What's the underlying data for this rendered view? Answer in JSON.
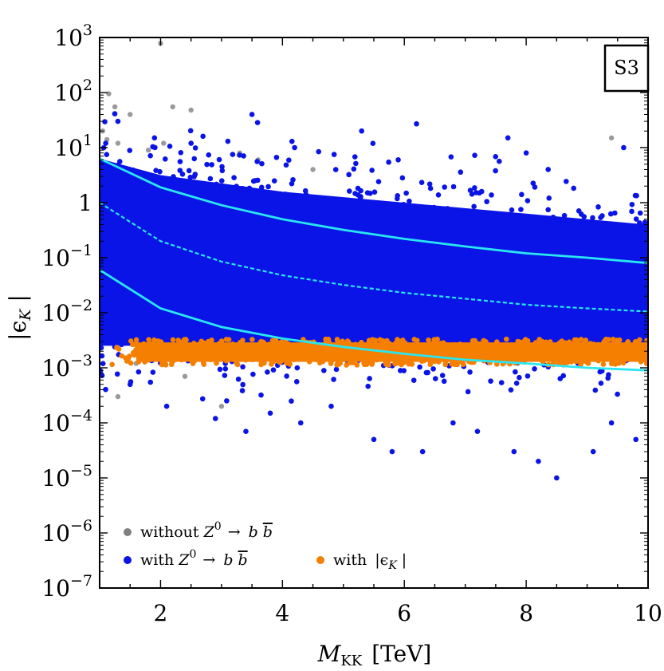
{
  "chart_data": {
    "type": "scatter",
    "title": "",
    "tag": "S3",
    "xlabel": "M_KK [TeV]",
    "xlabel_main": "M",
    "xlabel_sub": "KK",
    "xlabel_unit": "[TeV]",
    "ylabel": "|ε_K|",
    "xlim": [
      1,
      10
    ],
    "ylim_log10": [
      -7,
      3
    ],
    "x_ticks": [
      2,
      4,
      6,
      8,
      10
    ],
    "y_ticks": [
      {
        "exp": 3,
        "label": "10",
        "sup": "3"
      },
      {
        "exp": 2,
        "label": "10",
        "sup": "2"
      },
      {
        "exp": 1,
        "label": "10",
        "sup": "1"
      },
      {
        "exp": 0,
        "label": "1",
        "sup": ""
      },
      {
        "exp": -1,
        "label": "10",
        "sup": "−1"
      },
      {
        "exp": -2,
        "label": "10",
        "sup": "−2"
      },
      {
        "exp": -3,
        "label": "10",
        "sup": "−3"
      },
      {
        "exp": -4,
        "label": "10",
        "sup": "−4"
      },
      {
        "exp": -5,
        "label": "10",
        "sup": "−5"
      },
      {
        "exp": -6,
        "label": "10",
        "sup": "−6"
      },
      {
        "exp": -7,
        "label": "10",
        "sup": "−7"
      }
    ],
    "series": [
      {
        "name": "without Z0 → b b̄",
        "color": "#9a9a9a",
        "points": [
          [
            2.0,
            780
          ],
          [
            1.15,
            95
          ],
          [
            1.25,
            55
          ],
          [
            2.2,
            55
          ],
          [
            2.5,
            48
          ],
          [
            1.5,
            40
          ],
          [
            1.05,
            20
          ],
          [
            1.12,
            14
          ],
          [
            1.3,
            12
          ],
          [
            1.8,
            9
          ],
          [
            2.05,
            12
          ],
          [
            3.3,
            8
          ],
          [
            3.6,
            6
          ],
          [
            4.5,
            4
          ],
          [
            9.4,
            15
          ],
          [
            1.08,
            0.009
          ],
          [
            1.2,
            0.004
          ],
          [
            1.4,
            0.0035
          ],
          [
            1.6,
            0.0012
          ],
          [
            1.3,
            0.0003
          ],
          [
            3.0,
            0.0002
          ],
          [
            2.4,
            0.0007
          ],
          [
            1.12,
            0.006
          ],
          [
            1.05,
            0.02
          ]
        ]
      },
      {
        "name": "with Z0 → b b̄",
        "color": "#0a14e6",
        "band_log10": [
          [
            1,
            -2.6,
            0.8
          ],
          [
            2,
            -2.6,
            0.5
          ],
          [
            4,
            -2.7,
            0.2
          ],
          [
            6,
            -2.7,
            0.0
          ],
          [
            8,
            -2.7,
            -0.2
          ],
          [
            10,
            -2.8,
            -0.4
          ]
        ],
        "points": [
          [
            1.3,
            30
          ],
          [
            1.9,
            15
          ],
          [
            3.5,
            40
          ],
          [
            5.3,
            20
          ],
          [
            6.2,
            27
          ],
          [
            7.7,
            15
          ],
          [
            9.6,
            10
          ],
          [
            2.5,
            12
          ],
          [
            4.2,
            10
          ],
          [
            5.9,
            6
          ],
          [
            8.0,
            8
          ],
          [
            1.1,
            12
          ],
          [
            2.9,
            0.00012
          ],
          [
            3.4,
            7e-05
          ],
          [
            4.3,
            0.0001
          ],
          [
            5.5,
            5e-05
          ],
          [
            5.8,
            3e-05
          ],
          [
            6.3,
            3e-05
          ],
          [
            7.8,
            3e-05
          ],
          [
            8.2,
            2e-05
          ],
          [
            8.5,
            1e-05
          ],
          [
            9.1,
            3e-05
          ],
          [
            9.8,
            5e-05
          ],
          [
            2.1,
            0.0002
          ],
          [
            1.5,
            0.0005
          ],
          [
            7.2,
            7e-05
          ],
          [
            6.8,
            0.0001
          ],
          [
            4.8,
            0.0002
          ],
          [
            3.8,
            0.00015
          ],
          [
            9.4,
            0.0001
          ]
        ]
      },
      {
        "name": "with |ε_K|",
        "color": "#f57f00",
        "band_log10": [
          -2.95,
          -2.48
        ],
        "xlim": [
          1.2,
          10
        ]
      }
    ],
    "reference_curves": [
      {
        "name": "upper",
        "style": "solid",
        "color": "#29e6f0",
        "points": [
          [
            1,
            6.3
          ],
          [
            2,
            1.9
          ],
          [
            3,
            0.9
          ],
          [
            4,
            0.5
          ],
          [
            5,
            0.32
          ],
          [
            6,
            0.22
          ],
          [
            7,
            0.16
          ],
          [
            8,
            0.12
          ],
          [
            9,
            0.1
          ],
          [
            10,
            0.08
          ]
        ]
      },
      {
        "name": "central",
        "style": "dashed",
        "color": "#29e6f0",
        "points": [
          [
            1,
            1.0
          ],
          [
            2,
            0.2
          ],
          [
            3,
            0.085
          ],
          [
            4,
            0.048
          ],
          [
            5,
            0.032
          ],
          [
            6,
            0.023
          ],
          [
            7,
            0.018
          ],
          [
            8,
            0.014
          ],
          [
            9,
            0.012
          ],
          [
            10,
            0.0105
          ]
        ]
      },
      {
        "name": "lower",
        "style": "solid",
        "color": "#29e6f0",
        "points": [
          [
            1,
            0.06
          ],
          [
            2,
            0.012
          ],
          [
            3,
            0.0055
          ],
          [
            4,
            0.0034
          ],
          [
            5,
            0.0024
          ],
          [
            6,
            0.0018
          ],
          [
            7,
            0.0014
          ],
          [
            8,
            0.0012
          ],
          [
            9,
            0.001
          ],
          [
            10,
            0.0009
          ]
        ]
      }
    ],
    "legend": {
      "position": "bottom-left",
      "entries": [
        {
          "color": "#808080",
          "prefix": "without ",
          "Z": "Z",
          "sup": "0",
          "arrow": "→",
          "b": "b",
          "bbar": "b",
          "rest": ""
        },
        {
          "color": "#0a14e6",
          "prefix": "with ",
          "Z": "Z",
          "sup": "0",
          "arrow": "→",
          "b": "b",
          "bbar": "b",
          "rest": ""
        },
        {
          "color": "#f57f00",
          "prefix": "with ",
          "abs": "|ϵ",
          "sub": "K",
          "close": "|"
        }
      ]
    }
  }
}
